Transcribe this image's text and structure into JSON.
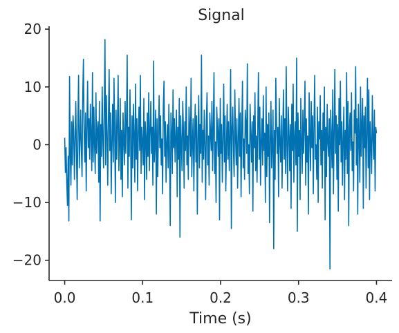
{
  "chart_data": {
    "type": "line",
    "title": "Signal",
    "xlabel": "Time (s)",
    "ylabel": "",
    "xlim": [
      -0.02,
      0.42
    ],
    "ylim": [
      -23.5,
      20.5
    ],
    "xticks": [
      0.0,
      0.1,
      0.2,
      0.3,
      0.4
    ],
    "xtick_labels": [
      "0.0",
      "0.1",
      "0.2",
      "0.3",
      "0.4"
    ],
    "yticks": [
      20,
      10,
      0,
      -10,
      -20
    ],
    "ytick_labels": [
      "20",
      "10",
      "0",
      "−10",
      "−20"
    ],
    "grid": false,
    "line_color": "#0072b2",
    "series": [
      {
        "x_start": 0.0,
        "x_end": 0.4,
        "values": [
          1.2,
          -4.8,
          -0.5,
          -6.5,
          -10.5,
          -2.0,
          -13.2,
          11.8,
          -1.5,
          -7.0,
          4.0,
          -3.5,
          5.0,
          2.5,
          -6.0,
          1.0,
          7.5,
          -2.0,
          -9.5,
          3.5,
          12.0,
          -4.0,
          0.5,
          6.0,
          -1.0,
          -5.5,
          8.5,
          14.8,
          2.0,
          -3.0,
          5.5,
          -8.0,
          3.0,
          11.0,
          -0.5,
          4.5,
          -2.5,
          7.0,
          1.5,
          -4.5,
          12.5,
          -3.0,
          6.5,
          0.0,
          -5.0,
          9.0,
          -1.5,
          2.5,
          4.0,
          -6.5,
          7.5,
          -13.2,
          3.5,
          -2.0,
          10.0,
          1.0,
          -4.0,
          6.0,
          18.2,
          -3.5,
          8.5,
          2.0,
          -7.0,
          4.5,
          13.0,
          -1.0,
          5.5,
          -8.5,
          0.5,
          7.0,
          -3.0,
          11.5,
          2.0,
          -10.0,
          6.0,
          -2.5,
          3.5,
          12.0,
          -4.5,
          0.0,
          8.0,
          -6.0,
          2.5,
          -9.0,
          5.5,
          1.0,
          -3.5,
          7.5,
          -1.5,
          4.0,
          15.5,
          -7.5,
          3.0,
          -2.0,
          9.5,
          0.5,
          -13.0,
          5.0,
          -4.0,
          7.0,
          1.5,
          -6.5,
          10.5,
          -2.5,
          4.5,
          -8.0,
          2.0,
          6.5,
          -1.0,
          12.0,
          -5.0,
          3.0,
          0.5,
          -3.5,
          8.0,
          -9.5,
          4.0,
          1.5,
          -6.0,
          5.5,
          -2.0,
          9.0,
          -4.5,
          2.5,
          7.5,
          -1.5,
          3.0,
          -7.0,
          14.5,
          -3.0,
          0.0,
          6.0,
          -12.0,
          4.5,
          -5.5,
          2.0,
          8.5,
          -0.5,
          5.0,
          -3.5,
          1.0,
          -8.5,
          6.5,
          11.0,
          -2.0,
          4.0,
          -6.5,
          0.5,
          3.5,
          -4.0,
          7.0,
          -1.5,
          -14.0,
          5.5,
          2.0,
          -5.0,
          9.5,
          -0.5,
          4.5,
          -3.0,
          1.5,
          6.0,
          -9.0,
          3.0,
          -2.5,
          8.0,
          -16.0,
          5.0,
          0.0,
          -4.5,
          7.5,
          2.5,
          -7.5,
          4.0,
          -1.0,
          10.0,
          -3.5,
          1.5,
          -6.0,
          6.5,
          3.0,
          -2.0,
          11.5,
          -5.5,
          0.5,
          4.5,
          -8.0,
          2.0,
          7.0,
          -3.0,
          5.0,
          -12.0,
          1.0,
          8.5,
          -4.0,
          3.5,
          -1.5,
          15.5,
          -6.5,
          2.5,
          -2.5,
          6.0,
          0.0,
          -9.5,
          4.0,
          9.0,
          -3.5,
          1.5,
          -7.0,
          5.5,
          2.0,
          -1.0,
          7.5,
          -4.5,
          3.0,
          12.5,
          -5.0,
          0.5,
          -10.0,
          6.5,
          2.5,
          -2.0,
          4.5,
          -13.0,
          8.0,
          -1.5,
          3.5,
          -6.5,
          1.0,
          10.5,
          -3.0,
          5.0,
          -8.0,
          0.0,
          7.0,
          -2.5,
          4.0,
          -4.5,
          2.0,
          13.0,
          -14.5,
          3.0,
          6.5,
          -1.0,
          -5.5,
          9.5,
          1.5,
          -3.5,
          4.5,
          -7.5,
          0.5,
          8.0,
          -2.0,
          5.5,
          -9.0,
          2.5,
          11.0,
          -4.0,
          1.0,
          -6.0,
          6.0,
          3.5,
          -1.5,
          14.0,
          -5.0,
          0.0,
          -8.5,
          7.0,
          2.0,
          -3.0,
          4.0,
          -11.5,
          5.0,
          -0.5,
          9.0,
          -4.5,
          1.5,
          -6.5,
          3.0,
          12.5,
          -2.5,
          6.5,
          -7.0,
          0.5,
          4.5,
          -3.5,
          8.5,
          -1.0,
          2.0,
          -10.0,
          10.0,
          -5.5,
          3.5,
          -2.0,
          5.5,
          -13.5,
          1.0,
          7.5,
          -4.0,
          0.0,
          6.0,
          -18.0,
          2.5,
          -6.0,
          11.5,
          4.0,
          -1.5,
          3.0,
          -9.0,
          8.0,
          0.5,
          -3.0,
          5.0,
          -7.5,
          1.5,
          9.5,
          -2.5,
          4.5,
          -5.0,
          13.5,
          0.0,
          -8.0,
          6.5,
          2.0,
          -4.5,
          3.5,
          -11.0,
          7.0,
          -1.0,
          10.5,
          -6.5,
          1.0,
          4.0,
          -3.5,
          15.0,
          -15.0,
          5.5,
          -2.0,
          2.5,
          -9.5,
          8.0,
          0.5,
          -5.0,
          6.0,
          -1.5,
          3.0,
          11.0,
          -7.0,
          4.5,
          -3.0,
          1.5,
          -12.0,
          9.0,
          2.0,
          -4.5,
          7.5,
          -0.5,
          5.0,
          -8.5,
          3.5,
          12.0,
          -2.5,
          0.0,
          -6.0,
          6.5,
          -10.0,
          4.0,
          1.0,
          8.5,
          -3.5,
          2.5,
          -7.5,
          5.5,
          -1.0,
          10.0,
          -13.0,
          3.0,
          -5.5,
          7.0,
          0.5,
          -2.0,
          4.5,
          -21.5,
          6.0,
          1.5,
          -4.0,
          9.5,
          -8.5,
          2.0,
          13.0,
          -1.5,
          5.0,
          -6.0,
          3.5,
          -11.5,
          8.0,
          0.0,
          11.0,
          -3.0,
          4.0,
          -7.0,
          1.0,
          6.5,
          -9.5,
          2.5,
          -2.5,
          12.5,
          -5.0,
          7.5,
          -14.0,
          3.0,
          5.5,
          -1.0,
          9.0,
          -4.5,
          0.5,
          -8.0,
          6.0,
          2.0,
          13.5,
          -3.5,
          4.5,
          -12.0,
          7.0,
          1.5,
          -6.5,
          10.0,
          -2.0,
          3.5,
          8.0,
          -11.0,
          5.0,
          -0.5,
          6.5,
          -7.5,
          2.0,
          11.5,
          -4.0,
          9.5,
          -9.5,
          4.0,
          0.0,
          -5.0,
          8.5,
          1.0,
          -2.5,
          6.0,
          -8.0,
          3.0,
          2.0
        ]
      }
    ]
  }
}
